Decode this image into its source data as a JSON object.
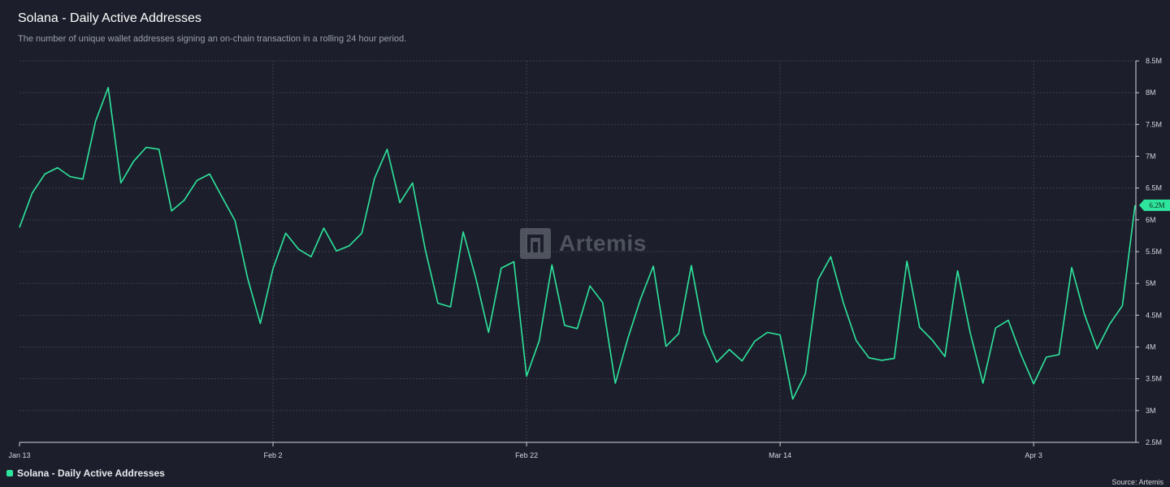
{
  "header": {
    "title": "Solana - Daily Active Addresses",
    "subtitle": "The number of unique wallet addresses signing an on-chain transaction in a rolling 24 hour period."
  },
  "watermark": {
    "text": "Artemis",
    "icon": "artemis-logo-icon"
  },
  "legend": {
    "label": "Solana - Daily Active Addresses",
    "color": "#2ee59d"
  },
  "source": "Source: Artemis",
  "colors": {
    "background": "#1c1f2b",
    "line": "#2ee59d",
    "grid": "#3a3e4c",
    "axis_text": "#d4d7de"
  },
  "chart_data": {
    "type": "line",
    "title": "Solana - Daily Active Addresses",
    "xlabel": "",
    "ylabel": "",
    "x_tick_labels": [
      "Jan 13",
      "Feb 2",
      "Feb 22",
      "Mar 14",
      "Apr 3"
    ],
    "y_tick_labels": [
      "2.5M",
      "3M",
      "3.5M",
      "4M",
      "4.5M",
      "5M",
      "5.5M",
      "6M",
      "6.5M",
      "7M",
      "7.5M",
      "8M",
      "8.5M"
    ],
    "ylim": [
      2500000,
      8500000
    ],
    "start_date": "2024-01-13",
    "grid": true,
    "legend_position": "bottom-left",
    "last_value_label": "6.2M",
    "series": [
      {
        "name": "Solana - Daily Active Addresses",
        "values": [
          5880000,
          6420000,
          6720000,
          6820000,
          6680000,
          6640000,
          7550000,
          8080000,
          6580000,
          6920000,
          7140000,
          7110000,
          6140000,
          6310000,
          6620000,
          6720000,
          6350000,
          5990000,
          5080000,
          4370000,
          5230000,
          5790000,
          5540000,
          5420000,
          5870000,
          5510000,
          5590000,
          5790000,
          6650000,
          7110000,
          6270000,
          6580000,
          5540000,
          4690000,
          4630000,
          5810000,
          5080000,
          4230000,
          5240000,
          5340000,
          3540000,
          4100000,
          5290000,
          4340000,
          4290000,
          4960000,
          4700000,
          3430000,
          4140000,
          4760000,
          5270000,
          4010000,
          4210000,
          5280000,
          4210000,
          3760000,
          3960000,
          3780000,
          4090000,
          4230000,
          4190000,
          3180000,
          3580000,
          5060000,
          5420000,
          4690000,
          4100000,
          3830000,
          3790000,
          3820000,
          5350000,
          4310000,
          4110000,
          3850000,
          5200000,
          4220000,
          3430000,
          4300000,
          4420000,
          3880000,
          3420000,
          3840000,
          3880000,
          5250000,
          4520000,
          3970000,
          4360000,
          4650000,
          6230000
        ]
      }
    ]
  }
}
